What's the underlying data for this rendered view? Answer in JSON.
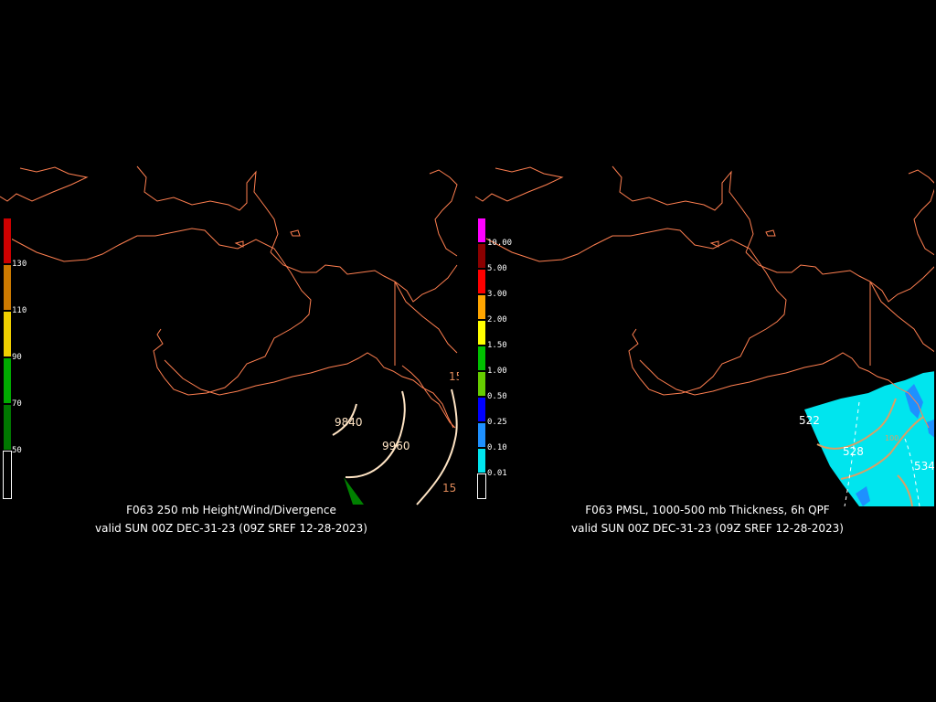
{
  "left_panel": {
    "caption_line1": "F063 250 mb Height/Wind/Divergence",
    "caption_line2": "valid SUN 00Z DEC-31-23 (09Z SREF 12-28-2023)",
    "colorbar": {
      "labels": [
        "130",
        "110",
        "90",
        "70",
        "50"
      ],
      "colors": [
        "#cc0000",
        "#cc7a00",
        "#f0d000",
        "#00aa00",
        "#007700",
        "#000000"
      ]
    },
    "contour_labels": [
      "9840",
      "9960",
      "15",
      "15"
    ],
    "colors": {
      "coast": "#ff7f50",
      "height": "#ffe4c4",
      "divergence_fill": "#008000",
      "divergence_line": "#e08a5a"
    }
  },
  "right_panel": {
    "caption_line1": "F063 PMSL, 1000-500 mb Thickness, 6h QPF",
    "caption_line2": "valid SUN 00Z DEC-31-23 (09Z SREF 12-28-2023)",
    "colorbar": {
      "labels": [
        "10.00",
        "5.00",
        "3.00",
        "2.00",
        "1.50",
        "1.00",
        "0.50",
        "0.25",
        "0.10",
        "0.01"
      ],
      "colors": [
        "#ff00ff",
        "#8b0000",
        "#ff0000",
        "#ffa500",
        "#ffff00",
        "#00c000",
        "#66cc00",
        "#0000ff",
        "#1e90ff",
        "#00e5ee",
        "#000000"
      ]
    },
    "contour_labels": [
      "522",
      "528",
      "534",
      "100"
    ],
    "colors": {
      "coast": "#ff7f50",
      "qpf": "#00e5ee",
      "qpf_dark": "#1e90ff",
      "thickness": "#d9a066",
      "pmsl": "#ffffff"
    }
  }
}
